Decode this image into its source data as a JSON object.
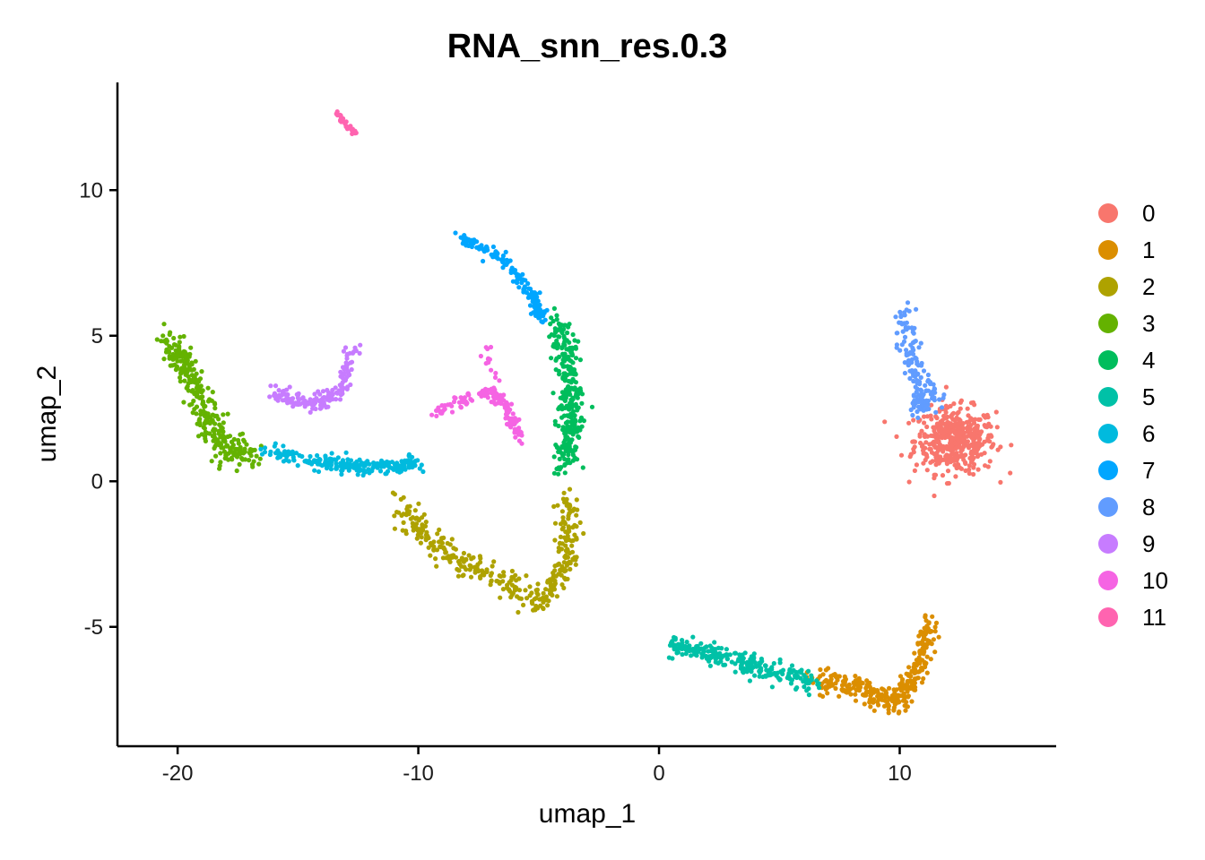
{
  "chart_data": {
    "type": "scatter",
    "title": "RNA_snn_res.0.3",
    "xlabel": "umap_1",
    "ylabel": "umap_2",
    "xlim": [
      -22.5,
      16.5
    ],
    "ylim": [
      -9.1,
      13.7
    ],
    "x_ticks": [
      -20,
      -10,
      0,
      10
    ],
    "x_tick_labels": [
      "-20",
      "-10",
      "0",
      "10"
    ],
    "y_ticks": [
      -5,
      0,
      5,
      10
    ],
    "y_tick_labels": [
      "-5",
      "0",
      "5",
      "10"
    ],
    "grid": false,
    "legend_position": "right",
    "series": [
      {
        "name": "0",
        "color": "#F8766D"
      },
      {
        "name": "1",
        "color": "#DB8E00"
      },
      {
        "name": "2",
        "color": "#AEA200"
      },
      {
        "name": "3",
        "color": "#64B200"
      },
      {
        "name": "4",
        "color": "#00BD5C"
      },
      {
        "name": "5",
        "color": "#00C1A7"
      },
      {
        "name": "6",
        "color": "#00BADE"
      },
      {
        "name": "7",
        "color": "#00A6FF"
      },
      {
        "name": "8",
        "color": "#619CFF"
      },
      {
        "name": "9",
        "color": "#C77CFF"
      },
      {
        "name": "10",
        "color": "#F564E3"
      },
      {
        "name": "11",
        "color": "#FF64B0"
      }
    ],
    "clusters": [
      {
        "series": "0",
        "center": [
          12.3,
          1.4
        ],
        "spread": [
          1.2,
          0.8
        ],
        "n": 450,
        "label_shape": "blob"
      },
      {
        "series": "1",
        "path": [
          [
            6.5,
            -6.8
          ],
          [
            8.5,
            -7.2
          ],
          [
            9.8,
            -7.6
          ],
          [
            10.8,
            -6.5
          ],
          [
            11.3,
            -4.8
          ]
        ],
        "width": 0.35,
        "n": 320
      },
      {
        "series": "2",
        "path": [
          [
            -10.8,
            -0.8
          ],
          [
            -9.0,
            -2.5
          ],
          [
            -7.0,
            -3.2
          ],
          [
            -5.0,
            -4.2
          ],
          [
            -3.8,
            -2.8
          ],
          [
            -3.8,
            -0.5
          ]
        ],
        "width": 0.4,
        "n": 360
      },
      {
        "series": "3",
        "path": [
          [
            -20.5,
            4.9
          ],
          [
            -19.5,
            3.8
          ],
          [
            -18.8,
            2.2
          ],
          [
            -18.2,
            1.2
          ],
          [
            -17.0,
            0.9
          ]
        ],
        "width": 0.45,
        "n": 320
      },
      {
        "series": "4",
        "path": [
          [
            -4.0,
            0.5
          ],
          [
            -3.6,
            2.2
          ],
          [
            -3.8,
            4.0
          ],
          [
            -4.2,
            5.5
          ]
        ],
        "width": 0.4,
        "n": 300
      },
      {
        "series": "5",
        "path": [
          [
            0.5,
            -5.6
          ],
          [
            2.5,
            -6.0
          ],
          [
            4.5,
            -6.5
          ],
          [
            6.5,
            -6.9
          ]
        ],
        "width": 0.3,
        "n": 260
      },
      {
        "series": "6",
        "path": [
          [
            -16.5,
            1.1
          ],
          [
            -14.0,
            0.6
          ],
          [
            -12.0,
            0.5
          ],
          [
            -10.0,
            0.6
          ]
        ],
        "width": 0.22,
        "n": 240
      },
      {
        "series": "7",
        "path": [
          [
            -8.3,
            8.4
          ],
          [
            -6.5,
            7.6
          ],
          [
            -5.3,
            6.4
          ],
          [
            -4.8,
            5.6
          ]
        ],
        "width": 0.2,
        "n": 150
      },
      {
        "series": "8",
        "path": [
          [
            10.2,
            5.8
          ],
          [
            10.4,
            4.2
          ],
          [
            11.0,
            3.2
          ],
          [
            10.5,
            2.5
          ],
          [
            11.5,
            2.9
          ]
        ],
        "width": 0.35,
        "n": 170
      },
      {
        "series": "9",
        "path": [
          [
            -16.0,
            3.1
          ],
          [
            -14.5,
            2.6
          ],
          [
            -13.3,
            3.0
          ],
          [
            -12.6,
            4.7
          ]
        ],
        "width": 0.25,
        "n": 160
      },
      {
        "series": "10",
        "path": [
          [
            -9.3,
            2.3
          ],
          [
            -7.5,
            3.0
          ],
          [
            -6.5,
            2.8
          ],
          [
            -5.8,
            1.5
          ],
          [
            -7.3,
            4.8
          ]
        ],
        "width": 0.2,
        "n": 150
      },
      {
        "series": "11",
        "path": [
          [
            -13.4,
            12.6
          ],
          [
            -12.6,
            11.9
          ]
        ],
        "width": 0.08,
        "n": 40
      }
    ]
  }
}
